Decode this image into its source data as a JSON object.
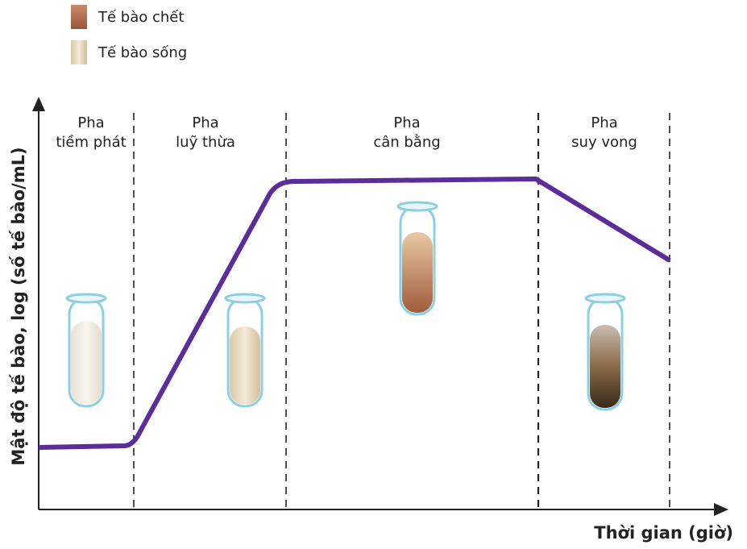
{
  "legend": [
    {
      "label": "Tế bào chết"
    },
    {
      "label": "Tế bào sống"
    }
  ],
  "phases": [
    {
      "lines": [
        "Pha",
        "tiềm phát"
      ]
    },
    {
      "lines": [
        "Pha",
        "luỹ thừa"
      ]
    },
    {
      "lines": [
        "Pha",
        "cân bằng"
      ]
    },
    {
      "lines": [
        "Pha",
        "suy vong"
      ]
    }
  ],
  "axes": {
    "y_label": "Mật độ tế bào, log (số tế bào/mL)",
    "x_label": "Thời gian (giờ)"
  }
}
